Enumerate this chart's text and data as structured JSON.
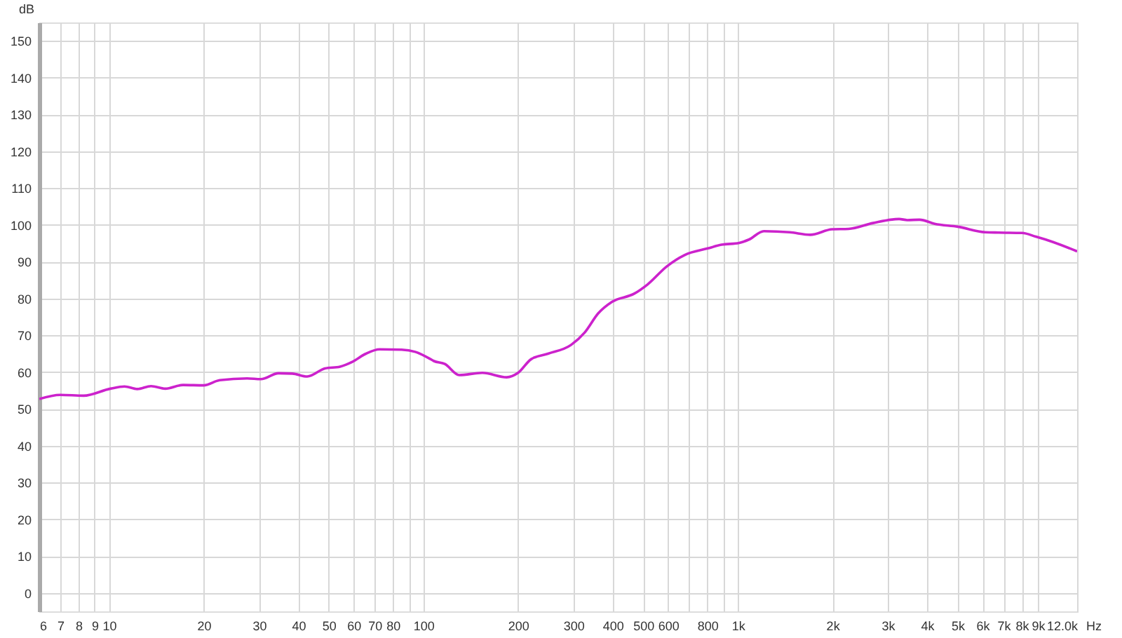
{
  "chart_data": {
    "type": "line",
    "ylabel": "dB",
    "xlabel": "Hz",
    "log": "x",
    "grid": true,
    "marker": "none",
    "line_style": "solid",
    "xlim": [
      6,
      12000
    ],
    "ylim": [
      -5,
      155
    ],
    "yticks": [
      0,
      10,
      20,
      30,
      40,
      50,
      60,
      70,
      80,
      90,
      100,
      110,
      120,
      130,
      140,
      150
    ],
    "xticks": [
      6,
      7,
      8,
      9,
      10,
      20,
      30,
      40,
      50,
      60,
      70,
      80,
      {
        "value": 90,
        "label": null
      },
      100,
      200,
      300,
      400,
      500,
      600,
      {
        "value": 700,
        "label": null
      },
      800,
      {
        "value": 900,
        "label": null
      },
      {
        "value": 1000,
        "label": "1k"
      },
      {
        "value": 2000,
        "label": "2k"
      },
      {
        "value": 3000,
        "label": "3k"
      },
      {
        "value": 4000,
        "label": "4k"
      },
      {
        "value": 5000,
        "label": "5k"
      },
      {
        "value": 6000,
        "label": "6k"
      },
      {
        "value": 7000,
        "label": "7k"
      },
      {
        "value": 8000,
        "label": "8k"
      },
      {
        "value": 9000,
        "label": "9k"
      },
      {
        "value": 12000,
        "label": "12.0k"
      }
    ],
    "series": [
      {
        "color": "#cc22cc",
        "x": [
          6,
          7,
          8.3,
          10.1,
          11.2,
          12.3,
          13.6,
          15.1,
          17.2,
          20,
          22.5,
          27.5,
          30.4,
          34.6,
          38.3,
          42.7,
          48.6,
          54.3,
          59.4,
          65.6,
          72.6,
          85.2,
          94.2,
          104,
          108,
          117,
          130,
          154,
          184,
          200,
          220,
          249,
          295,
          326,
          360,
          398,
          468,
          516,
          594,
          677,
          802,
          887,
          1010,
          1084,
          1210,
          1462,
          1700,
          1995,
          2250,
          2692,
          3258,
          3459,
          3784,
          4227,
          5012,
          6124,
          6761,
          8017,
          8872,
          10100,
          12000
        ],
        "values": [
          52.7,
          53.8,
          53.6,
          55.5,
          56.1,
          55.4,
          56.2,
          55.5,
          56.5,
          56.4,
          57.8,
          58.3,
          58.1,
          59.7,
          59.6,
          58.8,
          61,
          61.5,
          62.8,
          65,
          66.2,
          66.1,
          65.5,
          63.8,
          63,
          62.2,
          59.2,
          59.8,
          58.6,
          59.8,
          63.5,
          65,
          67.4,
          70.8,
          76,
          79.1,
          81.3,
          83.8,
          88.7,
          91.8,
          93.6,
          94.6,
          95.1,
          96,
          98.3,
          98,
          97.3,
          98.8,
          98.9,
          100.5,
          101.6,
          101.3,
          101.4,
          100.3,
          99.5,
          98,
          97.9,
          97.8,
          96.8,
          95.3,
          92.8
        ]
      }
    ]
  }
}
